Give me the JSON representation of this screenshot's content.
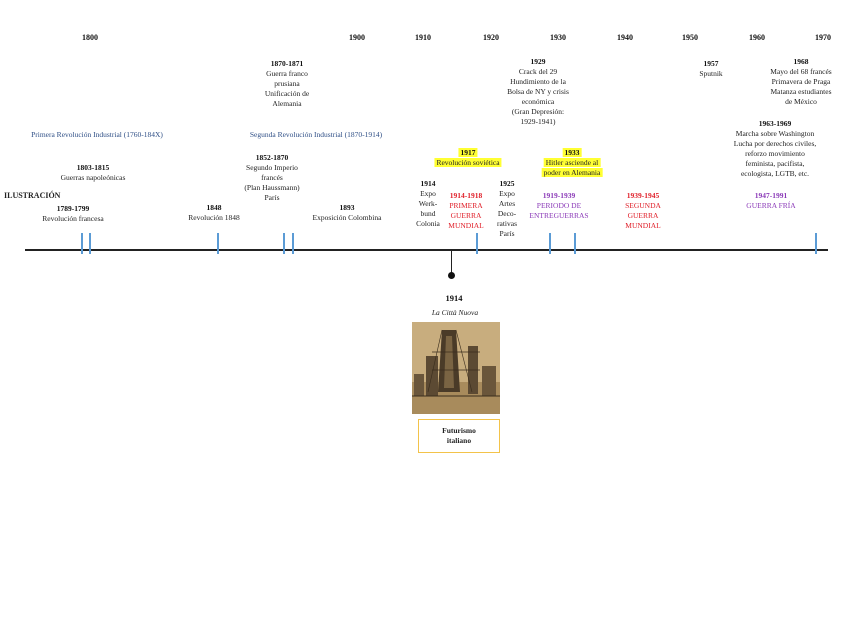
{
  "years": [
    "1800",
    "1900",
    "1910",
    "1920",
    "1930",
    "1940",
    "1950",
    "1960",
    "1970"
  ],
  "top_events": {
    "e1870": {
      "year": "1870-1871",
      "lines": [
        "Guerra franco",
        "prusiana",
        "Unificación de",
        "Alemania"
      ]
    },
    "e1929": {
      "year": "1929",
      "lines": [
        "Crack del 29",
        "Hundimiento de la",
        "Bolsa de NY y crisis",
        "económica",
        "(Gran Depresión:",
        "1929-1941)"
      ]
    },
    "e1957": {
      "year": "1957",
      "lines": [
        "Sputnik"
      ]
    },
    "e1968": {
      "year": "1968",
      "lines": [
        "Mayo del 68 francés",
        "Primavera de Praga",
        "Matanza estudiantes",
        "de México"
      ]
    },
    "e1963": {
      "year": "1963-1969",
      "lines": [
        "Marcha sobre Washington",
        "Lucha por derechos civiles,",
        "reforzo movimiento",
        "feminista, pacifista,",
        "ecologista, LGTB, etc."
      ]
    }
  },
  "periods": {
    "rev1": "Primera Revolución Industrial (1760-184X)",
    "rev2": "Segunda Revolución Industrial (1870-1914)"
  },
  "lower_events": {
    "e1803": {
      "year": "1803-1815",
      "text": "Guerras napoleónicas"
    },
    "ilustracion": "ILUSTRACIÓN",
    "e1789": {
      "year": "1789-1799",
      "text": "Revolución francesa"
    },
    "e1848": {
      "year": "1848",
      "text": "Revolución 1848"
    },
    "e1852": {
      "year": "1852-1870",
      "lines": [
        "Segundo Imperio",
        "francés",
        "(Plan Haussmann)",
        "París"
      ]
    },
    "e1893": {
      "year": "1893",
      "text": "Exposición Colombina"
    },
    "e1914expo": {
      "year": "1914",
      "lines": [
        "Expo",
        "Werk-",
        "bund",
        "Colonia"
      ]
    },
    "e1914war": {
      "year": "1914-1918",
      "lines": [
        "PRIMERA",
        "GUERRA",
        "MUNDIAL"
      ]
    },
    "e1917": {
      "year": "1917",
      "text": "Revolución soviética"
    },
    "e1925": {
      "year": "1925",
      "lines": [
        "Expo",
        "Artes",
        "Deco-",
        "rativas",
        "París"
      ]
    },
    "e1919": {
      "year": "1919-1939",
      "lines": [
        "PERIODO DE",
        "ENTREGUERRAS"
      ]
    },
    "e1933": {
      "year": "1933",
      "lines": [
        "Hitler asciende al",
        "poder en Alemania"
      ]
    },
    "e1939": {
      "year": "1939-1945",
      "lines": [
        "SEGUNDA",
        "GUERRA",
        "MUNDIAL"
      ]
    },
    "e1947": {
      "year": "1947-1991",
      "text": "GUERRA FRÍA"
    }
  },
  "featured": {
    "year": "1914",
    "title": "La Città Nuova",
    "caption_lines": [
      "Futurismo",
      "italiano"
    ]
  }
}
